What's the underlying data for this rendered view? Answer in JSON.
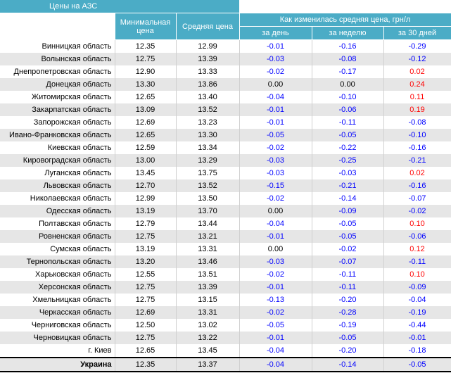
{
  "header": {
    "title": "Цены на АЗС"
  },
  "table": {
    "columns": {
      "min_price": "Минимальная цена",
      "avg_price": "Средняя цена",
      "change_group": "Как изменилась средняя цена, грн/л",
      "day": "за день",
      "week": "за неделю",
      "month": "за 30 дней"
    },
    "rows": [
      [
        "Винницкая область",
        "12.35",
        "12.99",
        "-0.01",
        "-0.16",
        "-0.29"
      ],
      [
        "Волынская область",
        "12.75",
        "13.39",
        "-0.03",
        "-0.08",
        "-0.12"
      ],
      [
        "Днепропетровская область",
        "12.90",
        "13.33",
        "-0.02",
        "-0.17",
        "0.02"
      ],
      [
        "Донецкая область",
        "13.30",
        "13.86",
        "0.00",
        "0.00",
        "0.24"
      ],
      [
        "Житомирская область",
        "12.65",
        "13.40",
        "-0.04",
        "-0.10",
        "0.11"
      ],
      [
        "Закарпатская область",
        "13.09",
        "13.52",
        "-0.01",
        "-0.06",
        "0.19"
      ],
      [
        "Запорожская область",
        "12.69",
        "13.23",
        "-0.01",
        "-0.11",
        "-0.08"
      ],
      [
        "Ивано-Франковская область",
        "12.65",
        "13.30",
        "-0.05",
        "-0.05",
        "-0.10"
      ],
      [
        "Киевская область",
        "12.59",
        "13.34",
        "-0.02",
        "-0.22",
        "-0.16"
      ],
      [
        "Кировоградская область",
        "13.00",
        "13.29",
        "-0.03",
        "-0.25",
        "-0.21"
      ],
      [
        "Луганская область",
        "13.45",
        "13.75",
        "-0.03",
        "-0.03",
        "0.02"
      ],
      [
        "Львовская область",
        "12.70",
        "13.52",
        "-0.15",
        "-0.21",
        "-0.16"
      ],
      [
        "Николаевская область",
        "12.99",
        "13.50",
        "-0.02",
        "-0.14",
        "-0.07"
      ],
      [
        "Одесская область",
        "13.19",
        "13.70",
        "0.00",
        "-0.09",
        "-0.02"
      ],
      [
        "Полтавская область",
        "12.79",
        "13.44",
        "-0.04",
        "-0.05",
        "0.10"
      ],
      [
        "Ровненская область",
        "12.75",
        "13.21",
        "-0.01",
        "-0.05",
        "-0.06"
      ],
      [
        "Сумская область",
        "13.19",
        "13.31",
        "0.00",
        "-0.02",
        "0.12"
      ],
      [
        "Тернопольская область",
        "13.20",
        "13.46",
        "-0.03",
        "-0.07",
        "-0.11"
      ],
      [
        "Харьковская область",
        "12.55",
        "13.51",
        "-0.02",
        "-0.11",
        "0.10"
      ],
      [
        "Херсонская область",
        "12.75",
        "13.39",
        "-0.01",
        "-0.11",
        "-0.09"
      ],
      [
        "Хмельницкая область",
        "12.75",
        "13.15",
        "-0.13",
        "-0.20",
        "-0.04"
      ],
      [
        "Черкасская область",
        "12.69",
        "13.31",
        "-0.02",
        "-0.28",
        "-0.19"
      ],
      [
        "Черниговская область",
        "12.50",
        "13.02",
        "-0.05",
        "-0.19",
        "-0.44"
      ],
      [
        "Черновицкая область",
        "12.75",
        "13.22",
        "-0.01",
        "-0.05",
        "-0.01"
      ],
      [
        "г. Киев",
        "12.65",
        "13.45",
        "-0.04",
        "-0.20",
        "-0.18"
      ],
      [
        "Украина",
        "12.35",
        "13.37",
        "-0.04",
        "-0.14",
        "-0.05"
      ]
    ]
  }
}
